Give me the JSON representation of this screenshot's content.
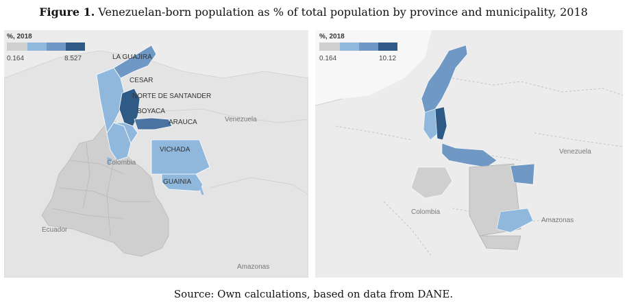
{
  "caption": {
    "label": "Figure 1.",
    "text": "Venezuelan-born population as % of total population by province and municipality, 2018"
  },
  "left_map": {
    "legend": {
      "title": "%, 2018",
      "min": "0.164",
      "max": "8.527"
    },
    "regions": [
      "LA GUAJIRA",
      "CESAR",
      "NORTE DE SANTANDER",
      "BOYACA",
      "ARAUCA",
      "VICHADA",
      "GUAINIA"
    ],
    "geo_labels": {
      "venezuela": "Venezuela",
      "colombia": "Colombia",
      "ecuador": "Ecuador",
      "amazonas": "Amazonas"
    }
  },
  "right_map": {
    "legend": {
      "title": "%, 2018",
      "min": "0.164",
      "max": "10.12"
    },
    "geo_labels": {
      "venezuela": "Venezuela",
      "colombia": "Colombia",
      "amazonas": "Amazonas"
    }
  },
  "colors": {
    "grey": "#cfcfcf",
    "light": "#8fb8dc",
    "mid": "#6f98c4",
    "dark": "#4a73a2",
    "darkest": "#2f5a86"
  },
  "source": "Source: Own calculations, based on data from DANE."
}
